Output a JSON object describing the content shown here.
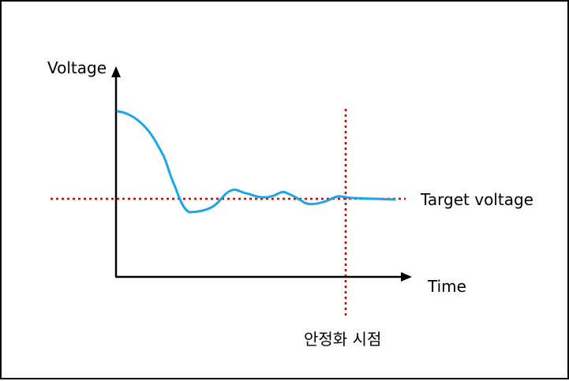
{
  "labels": {
    "y_axis": "Voltage",
    "x_axis": "Time",
    "target_line": "Target voltage",
    "settle_point": "안정화 시점"
  },
  "colors": {
    "curve": "#1aa7e6",
    "reference_lines": "#e00000",
    "axes": "#000000",
    "border": "#000000",
    "background": "#ffffff"
  }
}
